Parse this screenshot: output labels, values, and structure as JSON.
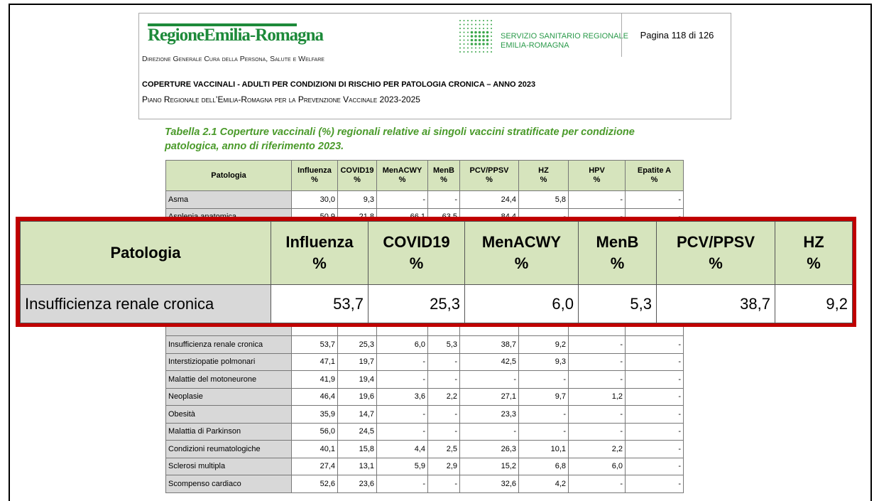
{
  "header": {
    "logo": "RegioneEmilia-Romagna",
    "department": "Direzione Generale Cura della Persona, Salute e Welfare",
    "service_line1": "SERVIZIO SANITARIO REGIONALE",
    "service_line2": "EMILIA-ROMAGNA",
    "page": "Pagina 118 di 126",
    "title": "COPERTURE VACCINALI - ADULTI PER CONDIZIONI DI RISCHIO PER PATOLOGIA CRONICA – ANNO 2023",
    "subtitle": "Piano Regionale dell’Emilia-Romagna per la Prevenzione Vaccinale 2023-2025"
  },
  "caption": "Tabella 2.1 Coperture vaccinali (%) regionali relative ai singoli vaccini stratificate per condizione patologica, anno di riferimento 2023.",
  "table": {
    "columns": [
      {
        "name": "Patologia"
      },
      {
        "name": "Influenza",
        "unit": "%"
      },
      {
        "name": "COVID19",
        "unit": "%"
      },
      {
        "name": "MenACWY",
        "unit": "%"
      },
      {
        "name": "MenB",
        "unit": "%"
      },
      {
        "name": "PCV/PPSV",
        "unit": "%"
      },
      {
        "name": "HZ",
        "unit": "%"
      },
      {
        "name": "HPV",
        "unit": "%"
      },
      {
        "name": "Epatite A",
        "unit": "%"
      }
    ],
    "rows": [
      [
        "Asma",
        "30,0",
        "9,3",
        "-",
        "-",
        "24,4",
        "5,8",
        "-",
        "-"
      ],
      [
        "Asplenia anatomica",
        "50,9",
        "21,8",
        "66,1",
        "63,5",
        "84,4",
        "-",
        "-",
        "-"
      ],
      [
        "Insufficienza renale cronica",
        "53,7",
        "25,3",
        "6,0",
        "5,3",
        "38,7",
        "9,2",
        "-",
        "-"
      ],
      [
        "Interstiziopatie polmonari",
        "47,1",
        "19,7",
        "-",
        "-",
        "42,5",
        "9,3",
        "-",
        "-"
      ],
      [
        "Malattie del motoneurone",
        "41,9",
        "19,4",
        "-",
        "-",
        "-",
        "-",
        "-",
        "-"
      ],
      [
        "Neoplasie",
        "46,4",
        "19,6",
        "3,6",
        "2,2",
        "27,1",
        "9,7",
        "1,2",
        "-"
      ],
      [
        "Obesità",
        "35,9",
        "14,7",
        "-",
        "-",
        "23,3",
        "-",
        "-",
        "-"
      ],
      [
        "Malattia di Parkinson",
        "56,0",
        "24,5",
        "-",
        "-",
        "-",
        "-",
        "-",
        "-"
      ],
      [
        "Condizioni reumatologiche",
        "40,1",
        "15,8",
        "4,4",
        "2,5",
        "26,3",
        "10,1",
        "2,2",
        "-"
      ],
      [
        "Sclerosi multipla",
        "27,4",
        "13,1",
        "5,9",
        "2,9",
        "15,2",
        "6,8",
        "6,0",
        "-"
      ],
      [
        "Scompenso cardiaco",
        "52,6",
        "23,6",
        "-",
        "-",
        "32,6",
        "4,2",
        "-",
        "-"
      ]
    ]
  }
}
